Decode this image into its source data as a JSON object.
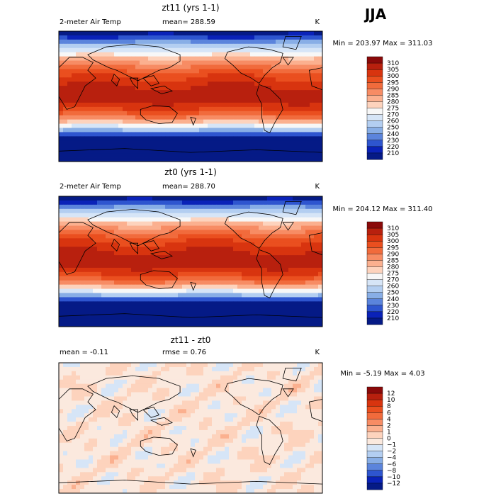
{
  "figure": {
    "season": "JJA",
    "land_gray": "#808080"
  },
  "chart_data": [
    {
      "type": "heatmap",
      "title": "zt11 (yrs 1-1)",
      "variable": "2-meter Air Temp",
      "stat_left": "mean= 288.59",
      "units": "K",
      "minmax": "Min = 203.97 Max = 311.03",
      "field": "abs",
      "color_levels": [
        "310",
        "305",
        "300",
        "295",
        "290",
        "285",
        "280",
        "275",
        "270",
        "260",
        "250",
        "240",
        "230",
        "220",
        "210"
      ],
      "colors": [
        "#8a0a0a",
        "#b8200e",
        "#d8340f",
        "#ea4f1f",
        "#f16b3c",
        "#f78c64",
        "#fbb08f",
        "#fdd3bd",
        "#f7f7f7",
        "#d6e5f7",
        "#b3cef1",
        "#88aee6",
        "#5b84dc",
        "#2e55cf",
        "#0a22b8",
        "#051a86"
      ]
    },
    {
      "type": "heatmap",
      "title": "zt0 (yrs 1-1)",
      "variable": "2-meter Air Temp",
      "stat_left": "mean= 288.70",
      "units": "K",
      "minmax": "Min = 204.12 Max = 311.40",
      "field": "abs",
      "color_levels": [
        "310",
        "305",
        "300",
        "295",
        "290",
        "285",
        "280",
        "275",
        "270",
        "260",
        "250",
        "240",
        "230",
        "220",
        "210"
      ],
      "colors": [
        "#8a0a0a",
        "#b8200e",
        "#d8340f",
        "#ea4f1f",
        "#f16b3c",
        "#f78c64",
        "#fbb08f",
        "#fdd3bd",
        "#f7f7f7",
        "#d6e5f7",
        "#b3cef1",
        "#88aee6",
        "#5b84dc",
        "#2e55cf",
        "#0a22b8",
        "#051a86"
      ]
    },
    {
      "type": "heatmap",
      "title": "zt11 - zt0",
      "variable": "",
      "stat_left": "mean =  -0.11",
      "stat_mid": "rmse =   0.76",
      "units": "K",
      "minmax": "Min =  -5.19 Max =   4.03",
      "field": "diff",
      "color_levels": [
        "12",
        "10",
        "8",
        "6",
        "4",
        "2",
        "1",
        "0",
        "−1",
        "−2",
        "−4",
        "−6",
        "−8",
        "−10",
        "−12"
      ],
      "colors": [
        "#8a0a0a",
        "#b8200e",
        "#d8340f",
        "#ea4f1f",
        "#f16b3c",
        "#f78c64",
        "#fbb08f",
        "#fdd3bd",
        "#fbe9de",
        "#d6e5f7",
        "#b3cef1",
        "#88aee6",
        "#5b84dc",
        "#2e55cf",
        "#0a22b8",
        "#051a86"
      ]
    }
  ]
}
